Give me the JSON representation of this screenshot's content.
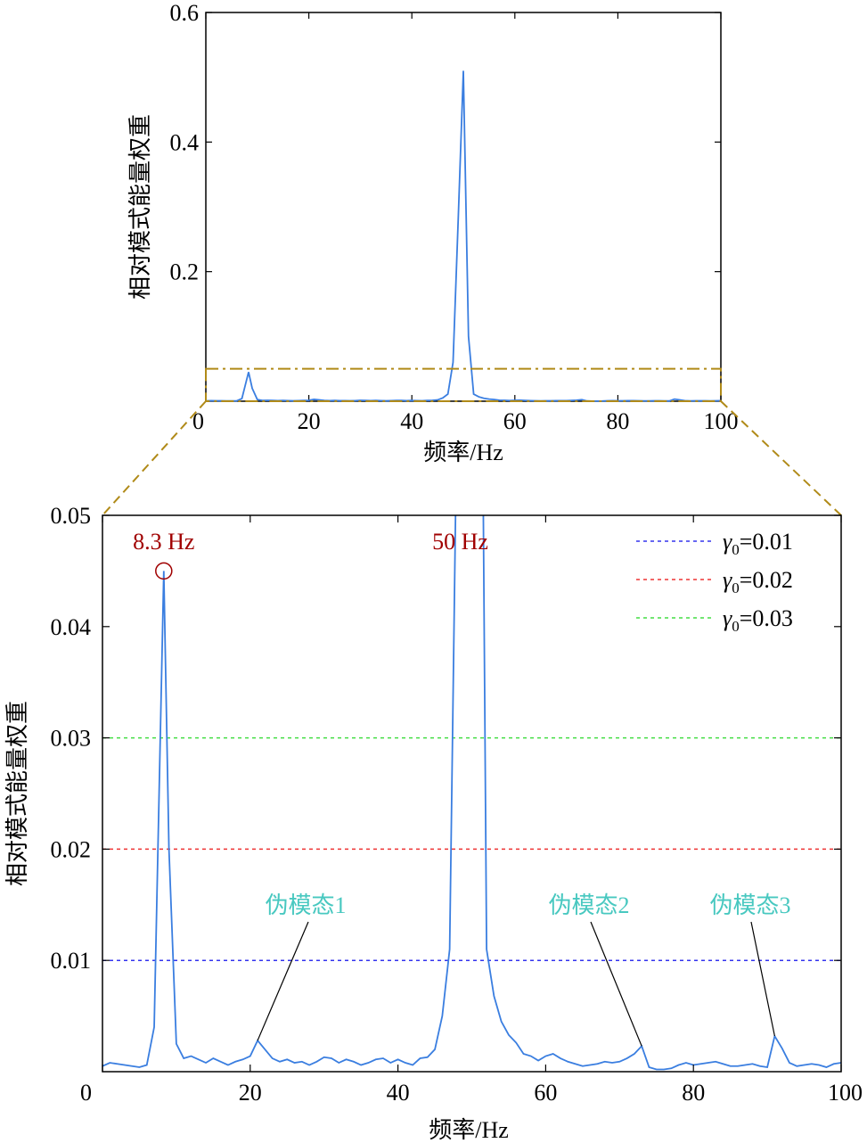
{
  "chart_data": [
    {
      "type": "line",
      "panel": "overview",
      "xlabel": "频率/Hz",
      "ylabel": "相对模式能量权重",
      "xlim": [
        0,
        100
      ],
      "ylim": [
        0,
        0.6
      ],
      "xticks": [
        0,
        20,
        40,
        60,
        80,
        100
      ],
      "yticks": [
        0.2,
        0.4,
        0.6
      ],
      "xtick_labels": [
        "0",
        "20",
        "40",
        "60",
        "80",
        "100"
      ],
      "ytick_labels": [
        "0.2",
        "0.4",
        "0.6"
      ],
      "series": [
        {
          "color": "#3a7ee0",
          "x": [
            0,
            1,
            2,
            3,
            4,
            5,
            6,
            7,
            8.3,
            9,
            10,
            11,
            12,
            13,
            14,
            15,
            16,
            17,
            18,
            19,
            20,
            21,
            22,
            23,
            24,
            25,
            26,
            27,
            28,
            29,
            30,
            31,
            32,
            33,
            34,
            35,
            36,
            37,
            38,
            39,
            40,
            41,
            42,
            43,
            44,
            45,
            46,
            47,
            48,
            49,
            50,
            51,
            52,
            53,
            54,
            55,
            56,
            57,
            58,
            59,
            60,
            61,
            62,
            63,
            64,
            65,
            66,
            67,
            68,
            69,
            70,
            71,
            72,
            73,
            74,
            75,
            76,
            77,
            78,
            79,
            80,
            81,
            82,
            83,
            84,
            85,
            86,
            87,
            88,
            89,
            90,
            91,
            92,
            93,
            94,
            95,
            96,
            97,
            98,
            99,
            100
          ],
          "values": [
            0.0005,
            0.0008,
            0.0007,
            0.0006,
            0.0005,
            0.0004,
            0.0006,
            0.004,
            0.045,
            0.02,
            0.0025,
            0.0012,
            0.0014,
            0.0011,
            0.0008,
            0.0012,
            0.0009,
            0.0006,
            0.0009,
            0.0011,
            0.0014,
            0.0028,
            0.002,
            0.0012,
            0.0009,
            0.0011,
            0.0008,
            0.0009,
            0.0006,
            0.0009,
            0.0013,
            0.0012,
            0.0008,
            0.0011,
            0.0009,
            0.0006,
            0.0008,
            0.0011,
            0.0012,
            0.0008,
            0.0011,
            0.0008,
            0.0006,
            0.0012,
            0.0013,
            0.002,
            0.005,
            0.011,
            0.06,
            0.28,
            0.51,
            0.1,
            0.011,
            0.0068,
            0.0045,
            0.0033,
            0.0026,
            0.0016,
            0.0014,
            0.001,
            0.0014,
            0.0016,
            0.0012,
            0.0009,
            0.0007,
            0.0005,
            0.0006,
            0.0007,
            0.0009,
            0.0008,
            0.0009,
            0.0012,
            0.0016,
            0.0023,
            0.0004,
            0.0002,
            0.0002,
            0.0003,
            0.0006,
            0.0008,
            0.0006,
            0.0007,
            0.0008,
            0.0009,
            0.0007,
            0.0005,
            0.0005,
            0.0006,
            0.0007,
            0.0005,
            0.0004,
            0.0032,
            0.0021,
            0.0008,
            0.0005,
            0.0006,
            0.0007,
            0.0006,
            0.0004,
            0.0007,
            0.0008
          ]
        }
      ]
    },
    {
      "type": "line",
      "panel": "zoom",
      "xlabel": "频率/Hz",
      "ylabel": "相对模式能量权重",
      "xlim": [
        0,
        100
      ],
      "ylim": [
        0,
        0.05
      ],
      "xticks": [
        0,
        20,
        40,
        60,
        80,
        100
      ],
      "yticks": [
        0.01,
        0.02,
        0.03,
        0.04,
        0.05
      ],
      "xtick_labels": [
        "0",
        "20",
        "40",
        "60",
        "80",
        "100"
      ],
      "ytick_labels": [
        "0.01",
        "0.02",
        "0.03",
        "0.04",
        "0.05"
      ],
      "thresholds": [
        {
          "name": "γ0=0.01",
          "label_base": "γ",
          "label_sub": "0",
          "label_rest": "=0.01",
          "value": 0.01,
          "color": "#3333ee"
        },
        {
          "name": "γ0=0.02",
          "label_base": "γ",
          "label_sub": "0",
          "label_rest": "=0.02",
          "value": 0.02,
          "color": "#ee3333"
        },
        {
          "name": "γ0=0.03",
          "label_base": "γ",
          "label_sub": "0",
          "label_rest": "=0.03",
          "value": 0.03,
          "color": "#44dd44"
        }
      ],
      "legend": "top-right",
      "annotations": {
        "peaks": [
          {
            "text": "8.3 Hz",
            "x": 8.3,
            "y": 0.045,
            "marker": "circle"
          },
          {
            "text": "50 Hz",
            "x": 50
          }
        ],
        "pseudo_modes": [
          {
            "text": "伪模态1",
            "x": 21,
            "y": 0.0028
          },
          {
            "text": "伪模态2",
            "x": 73,
            "y": 0.0023
          },
          {
            "text": "伪模态3",
            "x": 91,
            "y": 0.0032
          }
        ]
      }
    }
  ],
  "zoom_region": {
    "x": [
      0,
      100
    ],
    "y": [
      0,
      0.05
    ],
    "color": "#b08a18"
  }
}
